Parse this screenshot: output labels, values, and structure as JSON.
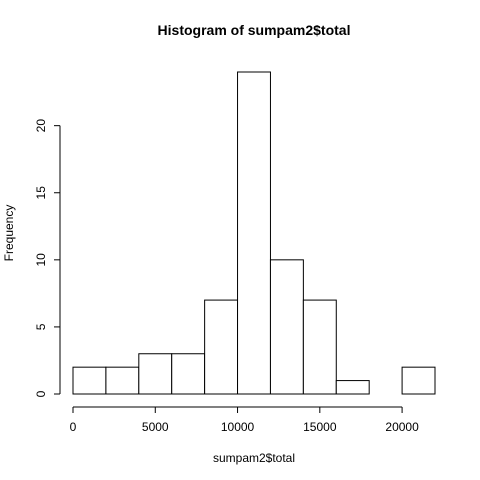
{
  "chart_data": {
    "type": "bar",
    "title": "Histogram of sumpam2$total",
    "xlabel": "sumpam2$total",
    "ylabel": "Frequency",
    "bin_edges": [
      0,
      2000,
      4000,
      6000,
      8000,
      10000,
      12000,
      14000,
      16000,
      18000,
      20000,
      22000
    ],
    "values": [
      2,
      2,
      3,
      3,
      7,
      24,
      10,
      7,
      1,
      0,
      2
    ],
    "xlim": [
      0,
      22000
    ],
    "ylim": [
      0,
      24
    ],
    "x_ticks": [
      0,
      5000,
      10000,
      15000,
      20000
    ],
    "x_tick_labels": [
      "0",
      "5000",
      "10000",
      "15000",
      "20000"
    ],
    "y_ticks": [
      0,
      5,
      10,
      15,
      20
    ],
    "y_tick_labels": [
      "0",
      "5",
      "10",
      "15",
      "20"
    ],
    "grid": false,
    "legend": "none"
  }
}
